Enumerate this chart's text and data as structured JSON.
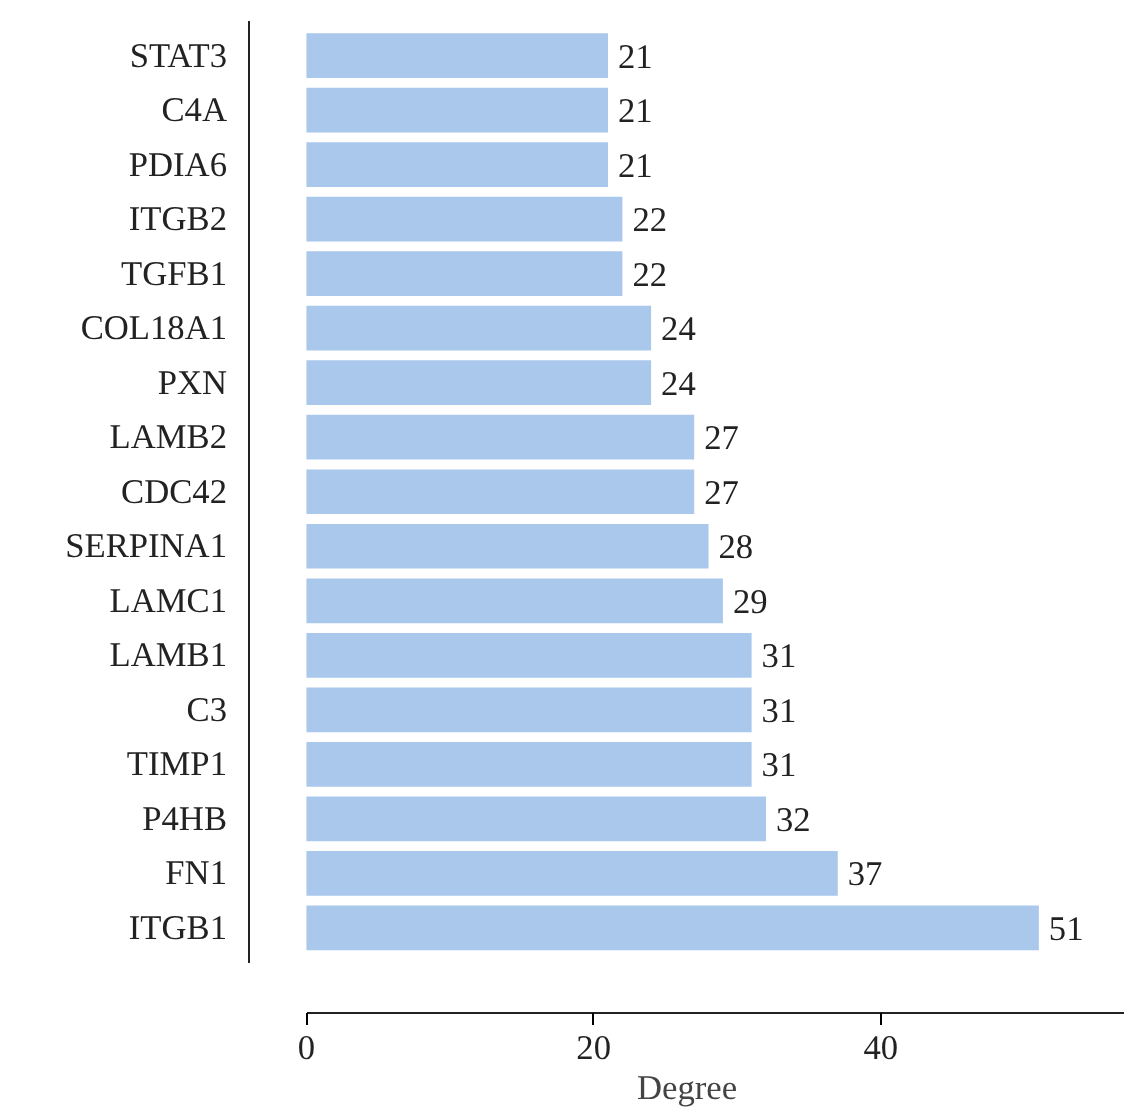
{
  "chart_data": {
    "type": "bar",
    "orientation": "horizontal",
    "xlabel": "Degree",
    "categories": [
      "STAT3",
      "C4A",
      "PDIA6",
      "ITGB2",
      "TGFB1",
      "COL18A1",
      "PXN",
      "LAMB2",
      "CDC42",
      "SERPINA1",
      "LAMC1",
      "LAMB1",
      "C3",
      "TIMP1",
      "P4HB",
      "FN1",
      "ITGB1"
    ],
    "values": [
      21,
      21,
      21,
      22,
      22,
      24,
      24,
      27,
      27,
      28,
      29,
      31,
      31,
      31,
      32,
      37,
      51
    ],
    "color": "#a9c8ec",
    "data_labels": true,
    "xlim": [
      -4,
      57
    ],
    "xticks": [
      0,
      20,
      40
    ],
    "grid": false
  }
}
